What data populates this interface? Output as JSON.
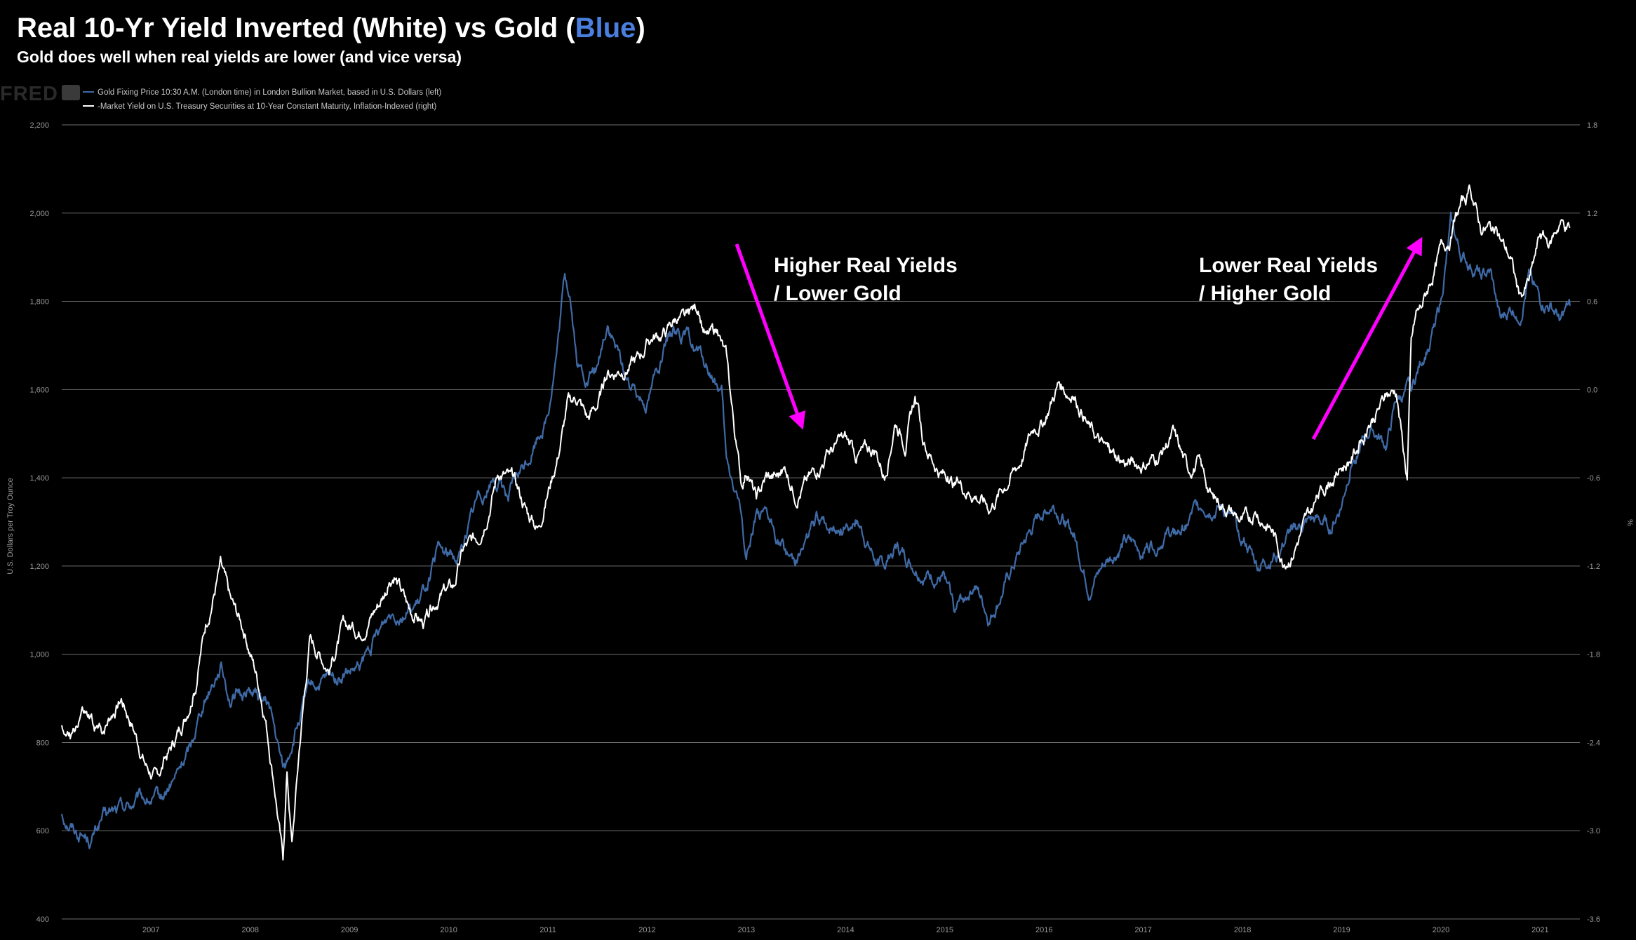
{
  "header": {
    "title_prefix": "Real 10-Yr Yield Inverted (White) vs Gold (",
    "title_blue": "Blue",
    "title_suffix": ")",
    "subtitle": "Gold does well when real yields are lower (and vice versa)",
    "logo": "FRED"
  },
  "chart_data": {
    "type": "line",
    "title": "Real 10-Yr Yield Inverted (White) vs Gold (Blue)",
    "subtitle": "Gold does well when real yields are lower (and vice versa)",
    "ylabel_left": "U.S. Dollars per Troy Ounce",
    "ylabel_right": "%",
    "ylim_left": [
      400,
      2200
    ],
    "ylim_right": [
      -3.6,
      1.8
    ],
    "xlim": [
      2006.6,
      2021.9
    ],
    "left_ticks": [
      "400",
      "600",
      "800",
      "1,000",
      "1,200",
      "1,400",
      "1,600",
      "1,800",
      "2,000",
      "2,200"
    ],
    "right_ticks": [
      "-3.6",
      "-3.0",
      "-2.4",
      "-1.8",
      "-1.2",
      "-0.6",
      "0.0",
      "0.6",
      "1.2",
      "1.8"
    ],
    "x_ticks": [
      "2007",
      "2008",
      "2009",
      "2010",
      "2011",
      "2012",
      "2013",
      "2014",
      "2015",
      "2016",
      "2017",
      "2018",
      "2019",
      "2020",
      "2021"
    ],
    "legend": [
      "Gold Fixing Price 10:30 A.M. (London time) in London Bullion Market, based in U.S. Dollars (left)",
      "-Market Yield on U.S. Treasury Securities at 10-Year Constant Maturity, Inflation-Indexed (right)"
    ],
    "series": [
      {
        "name": "Gold Fixing Price 10:30 A.M. (London time) in London Bullion Market, based in U.S. Dollars (left)",
        "axis": "left",
        "color": "#3f6aa6",
        "x": [
          2006.6,
          2006.75,
          2006.9,
          2007.0,
          2007.2,
          2007.4,
          2007.6,
          2007.75,
          2007.9,
          2008.0,
          2008.2,
          2008.3,
          2008.5,
          2008.7,
          2008.8,
          2008.85,
          2008.95,
          2009.1,
          2009.2,
          2009.4,
          2009.6,
          2009.8,
          2009.92,
          2010.0,
          2010.2,
          2010.4,
          2010.6,
          2010.8,
          2010.95,
          2011.1,
          2011.3,
          2011.5,
          2011.6,
          2011.67,
          2011.72,
          2011.8,
          2011.9,
          2012.0,
          2012.1,
          2012.2,
          2012.35,
          2012.5,
          2012.6,
          2012.8,
          2013.0,
          2013.1,
          2013.25,
          2013.3,
          2013.42,
          2013.5,
          2013.6,
          2013.7,
          2013.9,
          2014.0,
          2014.2,
          2014.4,
          2014.6,
          2014.8,
          2014.9,
          2015.0,
          2015.1,
          2015.3,
          2015.5,
          2015.6,
          2015.8,
          2015.95,
          2016.1,
          2016.3,
          2016.5,
          2016.6,
          2016.8,
          2016.95,
          2017.1,
          2017.3,
          2017.5,
          2017.7,
          2017.9,
          2018.0,
          2018.1,
          2018.3,
          2018.5,
          2018.65,
          2018.8,
          2019.0,
          2019.2,
          2019.4,
          2019.5,
          2019.6,
          2019.8,
          2019.95,
          2020.05,
          2020.2,
          2020.3,
          2020.4,
          2020.5,
          2020.6,
          2020.7,
          2020.8,
          2020.9,
          2021.0,
          2021.1,
          2021.2,
          2021.3,
          2021.4,
          2021.5,
          2021.6,
          2021.7,
          2021.8
        ],
        "values": [
          640,
          600,
          580,
          625,
          650,
          670,
          665,
          720,
          790,
          880,
          980,
          900,
          920,
          880,
          760,
          740,
          820,
          920,
          930,
          950,
          960,
          1050,
          1100,
          1100,
          1110,
          1230,
          1220,
          1360,
          1400,
          1360,
          1440,
          1550,
          1700,
          1850,
          1820,
          1650,
          1620,
          1650,
          1750,
          1680,
          1600,
          1580,
          1650,
          1740,
          1690,
          1650,
          1590,
          1420,
          1350,
          1220,
          1330,
          1300,
          1230,
          1220,
          1300,
          1280,
          1310,
          1210,
          1200,
          1250,
          1220,
          1180,
          1170,
          1100,
          1160,
          1080,
          1150,
          1250,
          1330,
          1340,
          1270,
          1150,
          1200,
          1250,
          1240,
          1270,
          1280,
          1320,
          1340,
          1330,
          1270,
          1200,
          1220,
          1280,
          1300,
          1290,
          1340,
          1440,
          1510,
          1470,
          1570,
          1600,
          1660,
          1720,
          1800,
          1970,
          1900,
          1880,
          1860,
          1860,
          1750,
          1780,
          1780,
          1870,
          1800,
          1790,
          1760,
          1790
        ]
      },
      {
        "name": "-Market Yield on U.S. Treasury Securities at 10-Year Constant Maturity, Inflation-Indexed (right)",
        "axis": "right",
        "color": "#ffffff",
        "x": [
          2006.6,
          2006.7,
          2006.8,
          2006.9,
          2007.0,
          2007.1,
          2007.2,
          2007.3,
          2007.45,
          2007.55,
          2007.7,
          2007.85,
          2007.95,
          2008.05,
          2008.2,
          2008.3,
          2008.45,
          2008.55,
          2008.65,
          2008.75,
          2008.83,
          2008.87,
          2008.92,
          2009.0,
          2009.1,
          2009.2,
          2009.3,
          2009.45,
          2009.6,
          2009.8,
          2009.95,
          2010.1,
          2010.25,
          2010.4,
          2010.55,
          2010.65,
          2010.8,
          2010.9,
          2011.0,
          2011.1,
          2011.2,
          2011.3,
          2011.4,
          2011.5,
          2011.6,
          2011.7,
          2011.8,
          2011.9,
          2012.0,
          2012.1,
          2012.25,
          2012.4,
          2012.55,
          2012.7,
          2012.8,
          2012.9,
          2013.0,
          2013.1,
          2013.2,
          2013.3,
          2013.35,
          2013.4,
          2013.45,
          2013.5,
          2013.6,
          2013.7,
          2013.8,
          2013.9,
          2014.0,
          2014.15,
          2014.3,
          2014.5,
          2014.6,
          2014.8,
          2014.9,
          2015.0,
          2015.1,
          2015.2,
          2015.3,
          2015.45,
          2015.6,
          2015.8,
          2015.95,
          2016.1,
          2016.25,
          2016.4,
          2016.5,
          2016.65,
          2016.8,
          2016.9,
          2016.95,
          2017.1,
          2017.2,
          2017.35,
          2017.5,
          2017.65,
          2017.8,
          2017.95,
          2018.05,
          2018.2,
          2018.35,
          2018.5,
          2018.65,
          2018.8,
          2018.9,
          2019.0,
          2019.1,
          2019.25,
          2019.4,
          2019.55,
          2019.7,
          2019.85,
          2019.95,
          2020.05,
          2020.12,
          2020.16,
          2020.2,
          2020.25,
          2020.3,
          2020.4,
          2020.5,
          2020.6,
          2020.7,
          2020.8,
          2020.9,
          2021.0,
          2021.1,
          2021.2,
          2021.3,
          2021.4,
          2021.5,
          2021.6,
          2021.7,
          2021.8
        ],
        "values": [
          -2.3,
          -2.4,
          -2.2,
          -2.3,
          -2.35,
          -2.2,
          -2.1,
          -2.25,
          -2.55,
          -2.65,
          -2.45,
          -2.2,
          -2.0,
          -1.6,
          -1.2,
          -1.45,
          -1.65,
          -1.9,
          -2.2,
          -2.7,
          -3.2,
          -2.6,
          -3.1,
          -2.4,
          -1.7,
          -1.8,
          -1.9,
          -1.6,
          -1.65,
          -1.45,
          -1.25,
          -1.5,
          -1.6,
          -1.4,
          -1.35,
          -1.1,
          -1.0,
          -0.8,
          -0.55,
          -0.6,
          -0.7,
          -0.85,
          -0.95,
          -0.7,
          -0.45,
          -0.1,
          -0.05,
          -0.2,
          -0.1,
          0.1,
          0.15,
          0.2,
          0.35,
          0.4,
          0.5,
          0.45,
          0.55,
          0.35,
          0.4,
          0.2,
          -0.1,
          -0.4,
          -0.65,
          -0.55,
          -0.75,
          -0.6,
          -0.6,
          -0.55,
          -0.7,
          -0.6,
          -0.45,
          -0.35,
          -0.45,
          -0.4,
          -0.6,
          -0.2,
          -0.35,
          -0.05,
          -0.4,
          -0.55,
          -0.65,
          -0.7,
          -0.8,
          -0.65,
          -0.5,
          -0.25,
          -0.2,
          0.05,
          -0.05,
          -0.15,
          -0.25,
          -0.4,
          -0.45,
          -0.5,
          -0.5,
          -0.45,
          -0.3,
          -0.55,
          -0.5,
          -0.75,
          -0.8,
          -0.9,
          -0.85,
          -0.95,
          -1.15,
          -1.1,
          -0.95,
          -0.75,
          -0.6,
          -0.5,
          -0.35,
          -0.15,
          -0.05,
          0.0,
          -0.4,
          -0.6,
          0.3,
          0.5,
          0.55,
          0.75,
          0.95,
          1.05,
          1.25,
          1.35,
          1.1,
          1.1,
          1.0,
          0.9,
          0.6,
          0.75,
          1.05,
          1.0,
          1.15,
          1.1
        ]
      }
    ],
    "annotations": [
      {
        "text": [
          "Higher Real Yields",
          "/ Lower Gold"
        ],
        "arrow_color": "#ff00ff"
      },
      {
        "text": [
          "Lower Real Yields",
          "/ Higher Gold"
        ],
        "arrow_color": "#ff00ff"
      }
    ]
  }
}
